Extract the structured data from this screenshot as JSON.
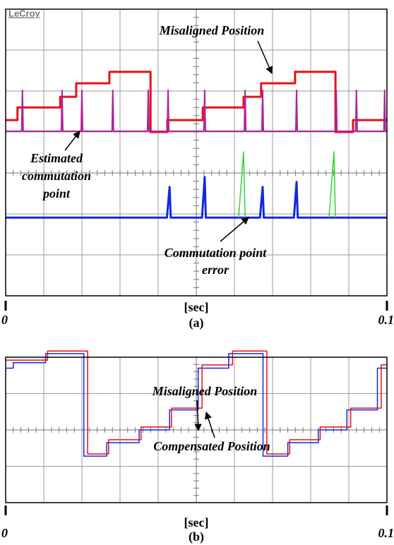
{
  "chart_data": [
    {
      "type": "line",
      "logo": "LeCroy",
      "x_label": "[sec]",
      "panel_label": "(a)",
      "xlim": [
        0,
        0.1
      ],
      "xticks": [
        0,
        0.1
      ],
      "ylim": [
        -3,
        4
      ],
      "grid": true,
      "annotations": [
        {
          "lines": [
            "Misaligned Position"
          ]
        },
        {
          "lines": [
            "Estimated",
            "commutation",
            "point"
          ]
        },
        {
          "lines": [
            "Commutation point",
            "error"
          ]
        }
      ],
      "series": [
        {
          "color": "#e8101a",
          "width": 3,
          "x": [
            0,
            0.0031,
            0.0031,
            0.0143,
            0.0143,
            0.0185,
            0.0185,
            0.0272,
            0.0272,
            0.038,
            0.038,
            0.0424,
            0.0424,
            0.0517,
            0.0517,
            0.0624,
            0.0624,
            0.067,
            0.067,
            0.0759,
            0.0759,
            0.0865,
            0.0865,
            0.0911,
            0.0911,
            0.1
          ],
          "values": [
            1.29,
            1.29,
            1.6,
            1.6,
            1.86,
            1.86,
            2.19,
            2.19,
            2.47,
            2.47,
            1.0,
            1.0,
            1.29,
            1.29,
            1.6,
            1.6,
            1.86,
            1.86,
            2.19,
            2.19,
            2.47,
            2.47,
            1.0,
            1.0,
            1.29,
            1.29
          ]
        },
        {
          "color": "#b0239a",
          "width": 2,
          "x": [
            0,
            0.0042,
            0.0044,
            0.0046,
            0.0146,
            0.0148,
            0.015,
            0.0198,
            0.02,
            0.0202,
            0.0279,
            0.0281,
            0.0283,
            0.0372,
            0.0374,
            0.0376,
            0.0424,
            0.0426,
            0.0428,
            0.052,
            0.0522,
            0.0524,
            0.0626,
            0.0628,
            0.063,
            0.0672,
            0.0674,
            0.0676,
            0.0761,
            0.0763,
            0.0765,
            0.0865,
            0.0867,
            0.0869,
            0.0918,
            0.092,
            0.0922,
            0.0992,
            0.0994,
            0.0996,
            0.1
          ],
          "values": [
            1.02,
            1.02,
            2.02,
            1.02,
            1.02,
            2.02,
            1.02,
            1.02,
            2.02,
            1.02,
            1.02,
            2.02,
            1.02,
            1.02,
            2.02,
            1.02,
            1.02,
            2.02,
            1.02,
            1.02,
            2.02,
            1.02,
            1.02,
            2.02,
            1.02,
            1.02,
            2.02,
            1.02,
            1.02,
            2.02,
            1.02,
            1.02,
            2.02,
            1.02,
            1.02,
            2.02,
            1.02,
            1.02,
            2.02,
            1.02,
            1.02
          ]
        },
        {
          "color": "#1428e0",
          "width": 3,
          "x": [
            0,
            0.0423,
            0.043,
            0.0433,
            0.0515,
            0.0522,
            0.0525,
            0.0667,
            0.0674,
            0.0677,
            0.0756,
            0.0763,
            0.0766,
            0.1
          ],
          "values": [
            -1.09,
            -1.09,
            -0.34,
            -1.09,
            -1.09,
            -0.1,
            -1.09,
            -1.09,
            -0.34,
            -1.09,
            -1.09,
            -0.22,
            -1.09,
            -1.09
          ]
        },
        {
          "color": "#2ed62e",
          "width": 1.5,
          "x": [
            0.0611,
            0.0624,
            0.0628,
            null,
            0.0848,
            0.0861,
            0.0865
          ],
          "values": [
            -1.09,
            0.52,
            -1.09,
            null,
            -1.09,
            0.52,
            -1.09
          ]
        }
      ]
    },
    {
      "type": "line",
      "x_label": "[sec]",
      "panel_label": "(b)",
      "xlim": [
        0,
        0.1
      ],
      "xticks": [
        0,
        0.1
      ],
      "ylim": [
        -2,
        2
      ],
      "grid": true,
      "annotations": [
        {
          "lines": [
            "Misaligned Position"
          ]
        },
        {
          "lines": [
            "Compensated Position"
          ]
        }
      ],
      "series": [
        {
          "color": "#1428e0",
          "width": 1.5,
          "x": [
            0,
            0.002,
            0.002,
            0.0105,
            0.0105,
            0.0205,
            0.0205,
            0.0265,
            0.0265,
            0.035,
            0.035,
            0.043,
            0.043,
            0.0505,
            0.0505,
            0.0585,
            0.0585,
            0.0675,
            0.0675,
            0.074,
            0.074,
            0.082,
            0.082,
            0.0895,
            0.0895,
            0.0975,
            0.0975,
            0.1
          ],
          "values": [
            1.7,
            1.7,
            1.85,
            1.85,
            2.1,
            2.1,
            -0.72,
            -0.72,
            -0.35,
            -0.35,
            0.0,
            0.0,
            0.55,
            0.55,
            1.7,
            1.7,
            2.1,
            2.1,
            -0.72,
            -0.72,
            -0.35,
            -0.35,
            0.0,
            0.0,
            0.55,
            0.55,
            1.7,
            1.7
          ]
        },
        {
          "color": "#e8101a",
          "width": 1.5,
          "x": [
            0,
            0.011,
            0.011,
            0.0215,
            0.0215,
            0.027,
            0.027,
            0.0355,
            0.0355,
            0.0435,
            0.0435,
            0.0515,
            0.0515,
            0.0595,
            0.0595,
            0.0685,
            0.0685,
            0.0745,
            0.0745,
            0.0825,
            0.0825,
            0.0905,
            0.0905,
            0.0985,
            0.0985,
            0.1
          ],
          "values": [
            1.92,
            1.92,
            2.17,
            2.17,
            -0.66,
            -0.66,
            -0.27,
            -0.27,
            0.08,
            0.08,
            0.6,
            0.6,
            1.79,
            1.79,
            2.17,
            2.17,
            -0.66,
            -0.66,
            -0.27,
            -0.27,
            0.08,
            0.08,
            0.6,
            0.6,
            1.79,
            1.79
          ]
        }
      ]
    }
  ]
}
